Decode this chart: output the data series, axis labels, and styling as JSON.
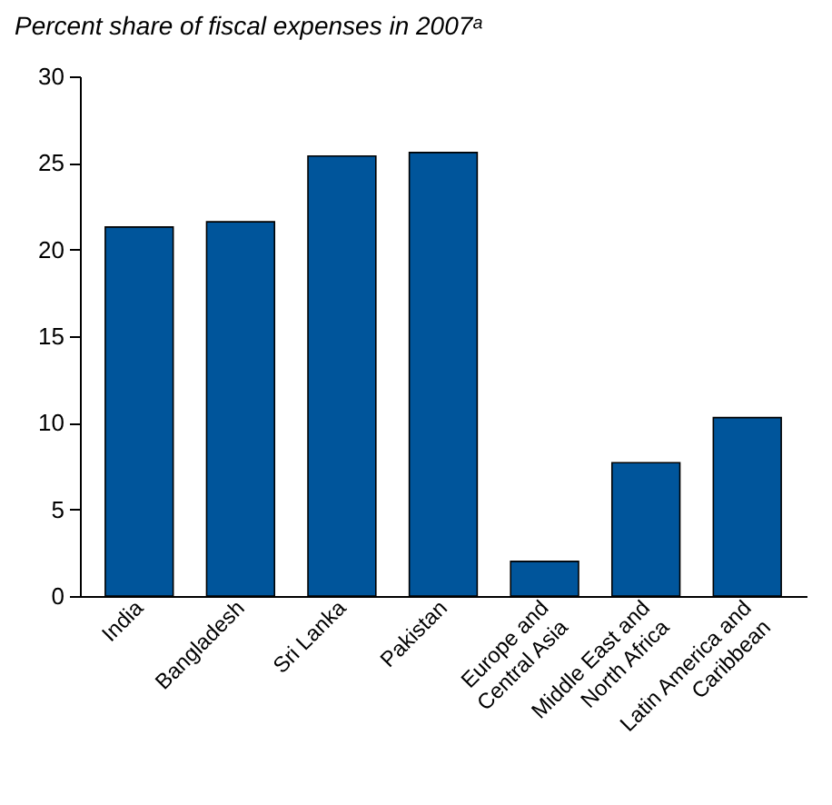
{
  "chart_data": {
    "type": "bar",
    "title": "Percent share of fiscal expenses in 2007ᵃ",
    "categories": [
      "India",
      "Bangladesh",
      "Sri Lanka",
      "Pakistan",
      "Europe and Central Asia",
      "Middle East and North Africa",
      "Latin America and Caribbean"
    ],
    "values": [
      21.3,
      21.6,
      25.4,
      25.6,
      2.0,
      7.7,
      10.3
    ],
    "color": "#00559b",
    "ylim": [
      0,
      30
    ],
    "yticks": [
      0,
      5,
      10,
      15,
      20,
      25,
      30
    ],
    "grid": false
  }
}
